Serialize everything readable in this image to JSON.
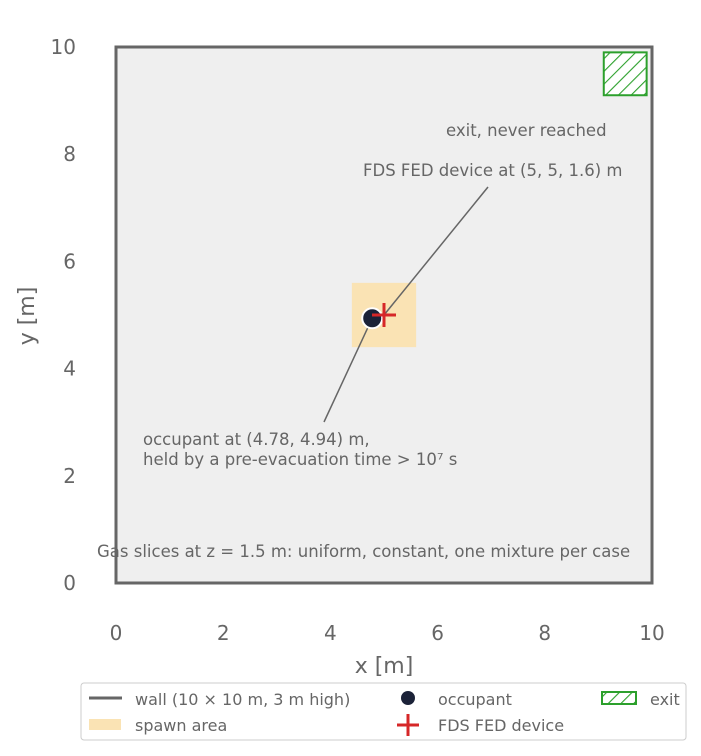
{
  "chart_data": {
    "type": "scatter",
    "xlabel": "x [m]",
    "ylabel": "y [m]",
    "xlim": [
      0,
      10
    ],
    "ylim": [
      0,
      10
    ],
    "xticks": [
      "0",
      "2",
      "4",
      "6",
      "8",
      "10"
    ],
    "yticks": [
      "0",
      "2",
      "4",
      "6",
      "8",
      "10"
    ],
    "grid": false,
    "room": {
      "x0": 0,
      "y0": 0,
      "x1": 10,
      "y1": 10
    },
    "spawn_area": {
      "x0": 4.4,
      "y0": 4.4,
      "x1": 5.6,
      "y1": 5.6
    },
    "exit": {
      "x0": 9.1,
      "y0": 9.1,
      "x1": 9.9,
      "y1": 9.9
    },
    "occupant": {
      "x": 4.78,
      "y": 4.94
    },
    "device": {
      "x": 5.0,
      "y": 5.0
    },
    "annotations": {
      "exit_note": "exit, never reached",
      "device_note": "FDS FED device at (5, 5, 1.6) m",
      "occupant_note_line1": "occupant at (4.78, 4.94) m,",
      "occupant_note_line2": "held by a pre-evacuation time > 10⁷ s",
      "gas_note": "Gas slices at z = 1.5 m: uniform, constant, one mixture per case"
    },
    "legend": {
      "placement": "bottom",
      "wall": "wall (10 × 10 m, 3 m high)",
      "spawn": "spawn area",
      "occupant": "occupant",
      "device": "FDS FED device",
      "exit": "exit"
    },
    "colors": {
      "wall": "#666666",
      "room_fill": "#efefef",
      "spawn": "#fae3b4",
      "occupant": "#1b2238",
      "device": "#d62728",
      "exit": "#2ca02c"
    }
  }
}
